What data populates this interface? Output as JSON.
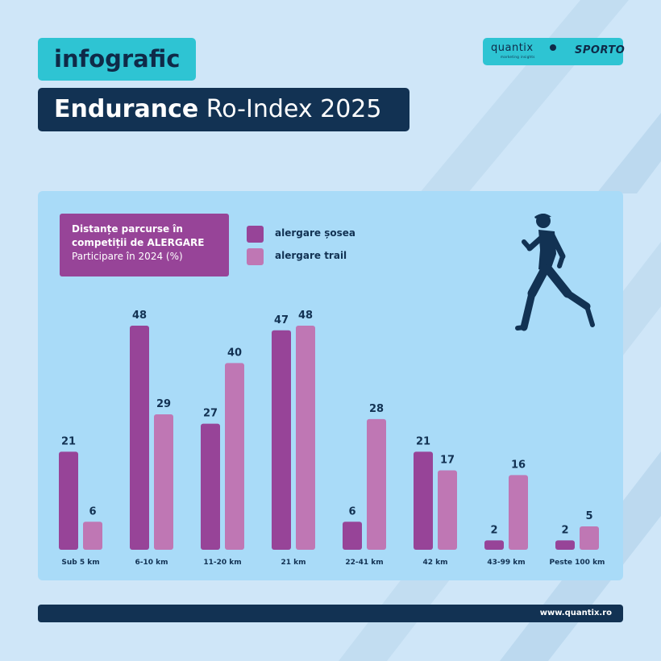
{
  "header": {
    "tag": "infografic",
    "title_bold": "Endurance",
    "title_rest": " Ro-Index 2025"
  },
  "logos": {
    "quantix": "quantix",
    "quantix_tagline": "marketing insights",
    "sporto": "SPORTO"
  },
  "colors": {
    "background": "#cfe6f8",
    "panel": "#a9dbf8",
    "road": "#974498",
    "trail": "#bf77b4",
    "navy": "#123253",
    "teal": "#2ec4d3"
  },
  "icon": "running-man-icon",
  "chart_data": {
    "type": "bar",
    "title_line1": "Distanțe parcurse în",
    "title_line2": "competiții de ALERGARE",
    "subtitle": "Participare în 2024 (%)",
    "categories": [
      "Sub 5 km",
      "6-10 km",
      "11-20 km",
      "21 km",
      "22-41 km",
      "42 km",
      "43-99 km",
      "Peste 100 km"
    ],
    "series": [
      {
        "name": "alergare șosea",
        "color": "#974498",
        "values": [
          21,
          48,
          27,
          47,
          6,
          21,
          2,
          2
        ]
      },
      {
        "name": "alergare trail",
        "color": "#bf77b4",
        "values": [
          6,
          29,
          40,
          48,
          28,
          17,
          16,
          5
        ]
      }
    ],
    "ylim": [
      0,
      48
    ],
    "grid": false,
    "legend": "top"
  },
  "footer": {
    "url": "www.quantix.ro"
  }
}
